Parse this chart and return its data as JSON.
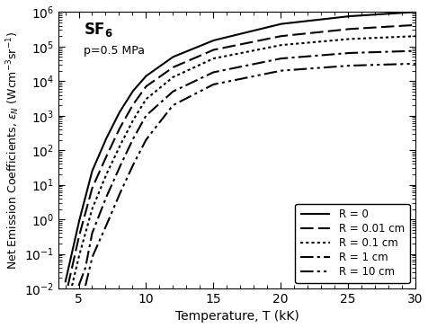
{
  "title_gas": "SF$_6$",
  "title_pressure": "p=0.5 MPa",
  "xlabel": "Temperature, T (kK)",
  "ylabel": "Net Emission Coefficients, $\\varepsilon_N$ (Wcm$^{-3}$sr$^{-1}$)",
  "xmin": 3.5,
  "xmax": 30.0,
  "ymin": 0.01,
  "ymax": 1000000.0,
  "legend_entries": [
    "R = 0",
    "R = 0.01 cm",
    "R = 0.1 cm",
    "R = 1 cm",
    "R = 10 cm"
  ],
  "linecolor": "black",
  "background_color": "white",
  "R0_points": [
    [
      4,
      0.015
    ],
    [
      5,
      0.8
    ],
    [
      6,
      25
    ],
    [
      7,
      200
    ],
    [
      8,
      1200
    ],
    [
      9,
      5000
    ],
    [
      10,
      14000
    ],
    [
      12,
      50000
    ],
    [
      15,
      150000
    ],
    [
      20,
      450000
    ],
    [
      25,
      750000
    ],
    [
      30,
      1000000
    ]
  ],
  "R001_points": [
    [
      4.2,
      0.012
    ],
    [
      5,
      0.3
    ],
    [
      6,
      8
    ],
    [
      7,
      60
    ],
    [
      8,
      400
    ],
    [
      9,
      2000
    ],
    [
      10,
      7000
    ],
    [
      12,
      25000
    ],
    [
      15,
      80000
    ],
    [
      20,
      200000
    ],
    [
      25,
      320000
    ],
    [
      30,
      420000
    ]
  ],
  "R01_points": [
    [
      4.5,
      0.012
    ],
    [
      5,
      0.08
    ],
    [
      6,
      2
    ],
    [
      7,
      18
    ],
    [
      8,
      120
    ],
    [
      9,
      700
    ],
    [
      10,
      3000
    ],
    [
      12,
      13000
    ],
    [
      15,
      45000
    ],
    [
      20,
      110000
    ],
    [
      25,
      165000
    ],
    [
      30,
      200000
    ]
  ],
  "R1_points": [
    [
      5.0,
      0.012
    ],
    [
      5.5,
      0.04
    ],
    [
      6,
      0.4
    ],
    [
      7,
      4
    ],
    [
      8,
      30
    ],
    [
      9,
      200
    ],
    [
      10,
      1000
    ],
    [
      12,
      5000
    ],
    [
      15,
      18000
    ],
    [
      20,
      45000
    ],
    [
      25,
      65000
    ],
    [
      30,
      75000
    ]
  ],
  "R10_points": [
    [
      5.5,
      0.012
    ],
    [
      6,
      0.08
    ],
    [
      7,
      0.6
    ],
    [
      8,
      5
    ],
    [
      9,
      35
    ],
    [
      10,
      200
    ],
    [
      12,
      2000
    ],
    [
      15,
      8000
    ],
    [
      20,
      20000
    ],
    [
      25,
      28000
    ],
    [
      30,
      32000
    ]
  ]
}
